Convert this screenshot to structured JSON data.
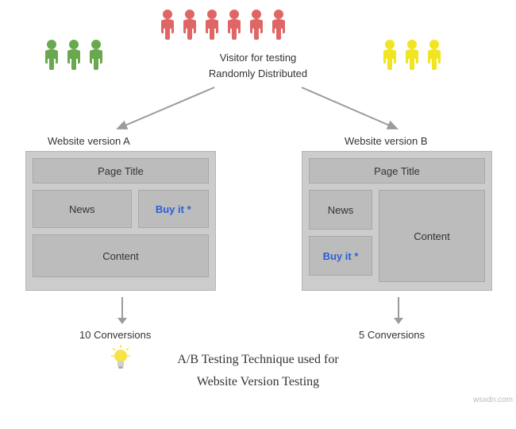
{
  "colors": {
    "green": "#6aa84f",
    "red": "#e06666",
    "yellow": "#f1e421",
    "panel_bg": "#cccccc",
    "panel_border": "#b6b6b6",
    "block_bg": "#bcbcbc",
    "block_border": "#a8a8a8",
    "text": "#333333",
    "buy_link": "#2a5fd6",
    "arrow": "#9b9b9b",
    "bulb_yellow": "#f7e24a",
    "bulb_base": "#cfcfcf"
  },
  "groups": {
    "green_count": 3,
    "red_count": 6,
    "yellow_count": 3
  },
  "center": {
    "line1": "Visitor for testing",
    "line2": "Randomly Distributed"
  },
  "version_a": {
    "label": "Website version A",
    "page_title": "Page Title",
    "news": "News",
    "buy": "Buy it *",
    "content": "Content",
    "conversions": "10 Conversions"
  },
  "version_b": {
    "label": "Website version B",
    "page_title": "Page Title",
    "news": "News",
    "buy": "Buy it *",
    "content": "Content",
    "conversions": "5 Conversions"
  },
  "caption": {
    "line1": "A/B Testing Technique used for",
    "line2": "Website Version Testing"
  },
  "watermark": "wsxdn.com"
}
